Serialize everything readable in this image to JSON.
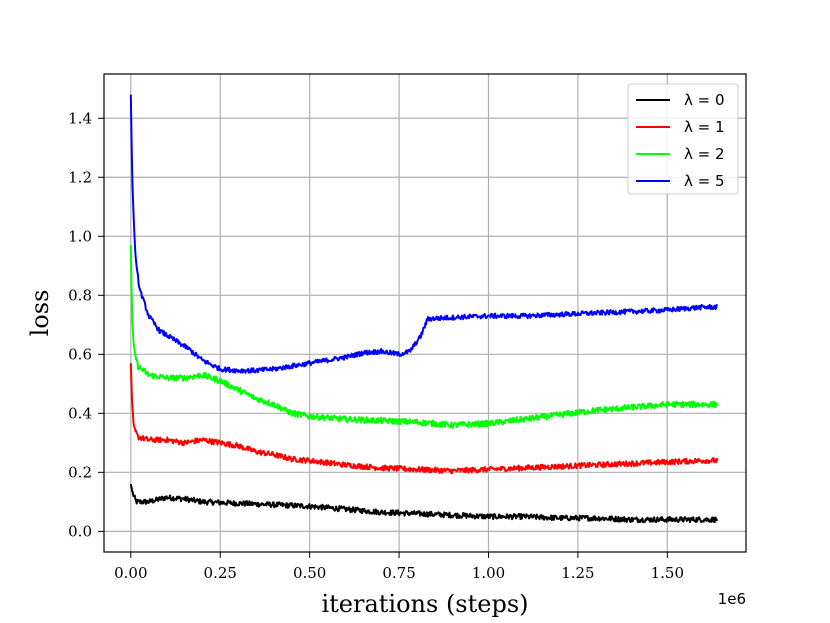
{
  "chart_data": {
    "type": "line",
    "xlabel": "iterations (steps)",
    "ylabel": "loss",
    "x_offset_label": "1e6",
    "xlim": [
      -0.075,
      1.72
    ],
    "ylim": [
      -0.07,
      1.55
    ],
    "xticks": [
      0.0,
      0.25,
      0.5,
      0.75,
      1.0,
      1.25,
      1.5
    ],
    "xtick_labels": [
      "0.00",
      "0.25",
      "0.50",
      "0.75",
      "1.00",
      "1.25",
      "1.50"
    ],
    "yticks": [
      0.0,
      0.2,
      0.4,
      0.6,
      0.8,
      1.0,
      1.2,
      1.4
    ],
    "ytick_labels": [
      "0.0",
      "0.2",
      "0.4",
      "0.6",
      "0.8",
      "1.0",
      "1.2",
      "1.4"
    ],
    "grid": true,
    "legend_position": "top-right",
    "series": [
      {
        "name": "λ = 0",
        "color": "#000000",
        "noise": 0.009,
        "x": [
          0,
          0.005,
          0.015,
          0.05,
          0.1,
          0.15,
          0.2,
          0.3,
          0.4,
          0.5,
          0.6,
          0.7,
          0.8,
          0.9,
          1.0,
          1.1,
          1.2,
          1.3,
          1.4,
          1.5,
          1.6,
          1.64
        ],
        "y": [
          0.16,
          0.13,
          0.1,
          0.1,
          0.115,
          0.11,
          0.1,
          0.095,
          0.09,
          0.085,
          0.075,
          0.065,
          0.06,
          0.055,
          0.05,
          0.05,
          0.045,
          0.045,
          0.04,
          0.04,
          0.04,
          0.04
        ]
      },
      {
        "name": "λ = 1",
        "color": "#ff0000",
        "noise": 0.009,
        "x": [
          0,
          0.003,
          0.008,
          0.02,
          0.05,
          0.1,
          0.15,
          0.2,
          0.3,
          0.35,
          0.4,
          0.45,
          0.5,
          0.6,
          0.7,
          0.8,
          0.9,
          1.0,
          1.1,
          1.2,
          1.3,
          1.4,
          1.5,
          1.6,
          1.64
        ],
        "y": [
          0.57,
          0.45,
          0.35,
          0.32,
          0.31,
          0.31,
          0.3,
          0.31,
          0.29,
          0.27,
          0.26,
          0.245,
          0.24,
          0.225,
          0.215,
          0.21,
          0.205,
          0.21,
          0.215,
          0.22,
          0.225,
          0.23,
          0.235,
          0.24,
          0.24
        ]
      },
      {
        "name": "λ = 2",
        "color": "#00ff00",
        "noise": 0.01,
        "x": [
          0,
          0.003,
          0.008,
          0.02,
          0.05,
          0.1,
          0.15,
          0.2,
          0.25,
          0.3,
          0.35,
          0.4,
          0.45,
          0.5,
          0.6,
          0.7,
          0.8,
          0.9,
          1.0,
          1.1,
          1.2,
          1.3,
          1.4,
          1.5,
          1.6,
          1.64
        ],
        "y": [
          0.97,
          0.75,
          0.62,
          0.56,
          0.53,
          0.52,
          0.52,
          0.53,
          0.51,
          0.48,
          0.45,
          0.43,
          0.4,
          0.39,
          0.38,
          0.375,
          0.37,
          0.36,
          0.365,
          0.38,
          0.395,
          0.41,
          0.42,
          0.43,
          0.43,
          0.43
        ]
      },
      {
        "name": "λ = 5",
        "color": "#0000ff",
        "noise": 0.008,
        "x": [
          0,
          0.003,
          0.008,
          0.015,
          0.025,
          0.05,
          0.08,
          0.12,
          0.16,
          0.2,
          0.25,
          0.3,
          0.35,
          0.4,
          0.5,
          0.6,
          0.65,
          0.7,
          0.75,
          0.78,
          0.81,
          0.83,
          0.9,
          1.0,
          1.1,
          1.2,
          1.3,
          1.4,
          1.5,
          1.6,
          1.64
        ],
        "y": [
          1.48,
          1.25,
          1.05,
          0.9,
          0.82,
          0.73,
          0.68,
          0.65,
          0.62,
          0.58,
          0.55,
          0.545,
          0.545,
          0.55,
          0.57,
          0.59,
          0.605,
          0.61,
          0.6,
          0.61,
          0.66,
          0.72,
          0.725,
          0.73,
          0.73,
          0.735,
          0.74,
          0.745,
          0.75,
          0.76,
          0.76
        ]
      }
    ]
  }
}
